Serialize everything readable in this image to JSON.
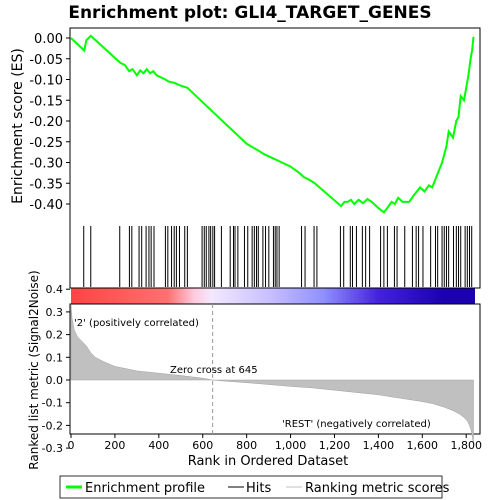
{
  "chart_data": {
    "type": "line",
    "title": "Enrichment plot: GLI4_TARGET_GENES",
    "top_panel": {
      "ylabel": "Enrichment score (ES)",
      "ylim": [
        -0.43,
        0.02
      ],
      "yticks": [
        0.0,
        -0.05,
        -0.1,
        -0.15,
        -0.2,
        -0.25,
        -0.3,
        -0.35,
        -0.4
      ],
      "ytick_labels": [
        "0.00",
        "-0.05",
        "-0.10",
        "-0.15",
        "-0.20",
        "-0.25",
        "-0.30",
        "-0.35",
        "-0.40"
      ],
      "series": [
        {
          "name": "Enrichment profile",
          "color": "#00ff00",
          "x": [
            0,
            60,
            70,
            90,
            225,
            245,
            265,
            280,
            300,
            315,
            330,
            345,
            360,
            375,
            390,
            430,
            445,
            470,
            500,
            530,
            600,
            650,
            700,
            750,
            800,
            850,
            880,
            900,
            920,
            940,
            1000,
            1040,
            1060,
            1080,
            1110,
            1230,
            1245,
            1260,
            1275,
            1290,
            1310,
            1330,
            1350,
            1370,
            1400,
            1425,
            1440,
            1460,
            1475,
            1490,
            1510,
            1540,
            1560,
            1575,
            1590,
            1610,
            1630,
            1645,
            1660,
            1675,
            1690,
            1700,
            1710,
            1720,
            1740,
            1755,
            1765,
            1775,
            1790,
            1800,
            1810,
            1820,
            1827,
            1833
          ],
          "y": [
            0.0,
            -0.03,
            -0.005,
            0.005,
            -0.06,
            -0.065,
            -0.08,
            -0.075,
            -0.09,
            -0.078,
            -0.085,
            -0.075,
            -0.085,
            -0.08,
            -0.09,
            -0.1,
            -0.105,
            -0.108,
            -0.115,
            -0.12,
            -0.155,
            -0.18,
            -0.205,
            -0.23,
            -0.255,
            -0.27,
            -0.28,
            -0.285,
            -0.29,
            -0.295,
            -0.31,
            -0.325,
            -0.335,
            -0.34,
            -0.35,
            -0.405,
            -0.395,
            -0.395,
            -0.39,
            -0.4,
            -0.39,
            -0.398,
            -0.388,
            -0.395,
            -0.41,
            -0.42,
            -0.41,
            -0.395,
            -0.4,
            -0.385,
            -0.395,
            -0.395,
            -0.38,
            -0.37,
            -0.36,
            -0.37,
            -0.355,
            -0.36,
            -0.34,
            -0.32,
            -0.3,
            -0.28,
            -0.26,
            -0.225,
            -0.24,
            -0.2,
            -0.19,
            -0.14,
            -0.15,
            -0.12,
            -0.09,
            -0.05,
            -0.03,
            0.003
          ]
        }
      ]
    },
    "hits": [
      58,
      90,
      222,
      266,
      277,
      310,
      322,
      342,
      355,
      365,
      378,
      430,
      441,
      458,
      470,
      480,
      494,
      518,
      530,
      597,
      607,
      616,
      628,
      636,
      646,
      654,
      685,
      725,
      740,
      747,
      760,
      790,
      805,
      825,
      835,
      845,
      853,
      874,
      886,
      901,
      922,
      930,
      938,
      948,
      1050,
      1066,
      1107,
      1120,
      1227,
      1242,
      1272,
      1282,
      1300,
      1327,
      1342,
      1360,
      1410,
      1425,
      1441,
      1473,
      1485,
      1520,
      1555,
      1572,
      1583,
      1603,
      1638,
      1660,
      1670,
      1690,
      1700,
      1710,
      1720,
      1742,
      1755,
      1765,
      1775,
      1795,
      1805,
      1815,
      1825
    ],
    "hits_label": "Hits",
    "gradient_stops": [
      {
        "at": 0,
        "color": "#ff4444"
      },
      {
        "at": 440,
        "color": "#ff7070"
      },
      {
        "at": 560,
        "color": "#ffc8dc"
      },
      {
        "at": 640,
        "color": "#f4e8ff"
      },
      {
        "at": 900,
        "color": "#c8c0ff"
      },
      {
        "at": 1150,
        "color": "#9090ff"
      },
      {
        "at": 1400,
        "color": "#4422dd"
      },
      {
        "at": 1700,
        "color": "#1a00b0"
      },
      {
        "at": 1840,
        "color": "#1a00b0"
      }
    ],
    "metric_panel": {
      "ylabel": "Ranked list metric (Signal2Noise)",
      "xlabel": "Rank in Ordered Dataset",
      "ylim": [
        -0.31,
        0.45
      ],
      "yticks": [
        0.4,
        0.3,
        0.2,
        0.1,
        0.0,
        -0.1,
        -0.2,
        -0.3
      ],
      "ytick_labels": [
        "0.4",
        "0.3",
        "0.2",
        "0.1",
        "0.0",
        "-0.1",
        "-0.2",
        "-0.3"
      ],
      "xlim": [
        0,
        1840
      ],
      "xticks": [
        0,
        200,
        400,
        600,
        800,
        1000,
        1200,
        1400,
        1600,
        1800
      ],
      "xtick_labels": [
        "0",
        "200",
        "400",
        "600",
        "800",
        "1,000",
        "1,200",
        "1,400",
        "1,600",
        "1,800"
      ],
      "series": [
        {
          "name": "Ranking metric scores",
          "color": "#c0c0c0",
          "x": [
            0,
            5,
            15,
            30,
            50,
            70,
            90,
            110,
            150,
            200,
            250,
            300,
            400,
            500,
            600,
            645,
            700,
            800,
            900,
            1000,
            1100,
            1200,
            1300,
            1400,
            1500,
            1600,
            1650,
            1700,
            1740,
            1770,
            1790,
            1805,
            1815,
            1822,
            1828,
            1833
          ],
          "y": [
            0.33,
            0.27,
            0.22,
            0.19,
            0.17,
            0.15,
            0.12,
            0.1,
            0.08,
            0.06,
            0.05,
            0.04,
            0.03,
            0.02,
            0.008,
            0.0,
            -0.005,
            -0.012,
            -0.02,
            -0.028,
            -0.035,
            -0.045,
            -0.055,
            -0.065,
            -0.08,
            -0.095,
            -0.105,
            -0.12,
            -0.135,
            -0.15,
            -0.165,
            -0.18,
            -0.2,
            -0.22,
            -0.25,
            -0.28
          ]
        }
      ],
      "annotations": {
        "positive_label": "'2' (positively correlated)",
        "negative_label": "'REST' (negatively correlated)",
        "zero_cross_label": "Zero cross at 645",
        "zero_cross_value": 645,
        "positive_color": "#ff0000",
        "negative_color": "#0000ff"
      }
    },
    "legend": [
      {
        "label": "Enrichment profile",
        "color": "#00ff00"
      },
      {
        "label": "Hits",
        "color": "#000000"
      },
      {
        "label": "Ranking metric scores",
        "color": "#c0c0c0"
      }
    ]
  }
}
